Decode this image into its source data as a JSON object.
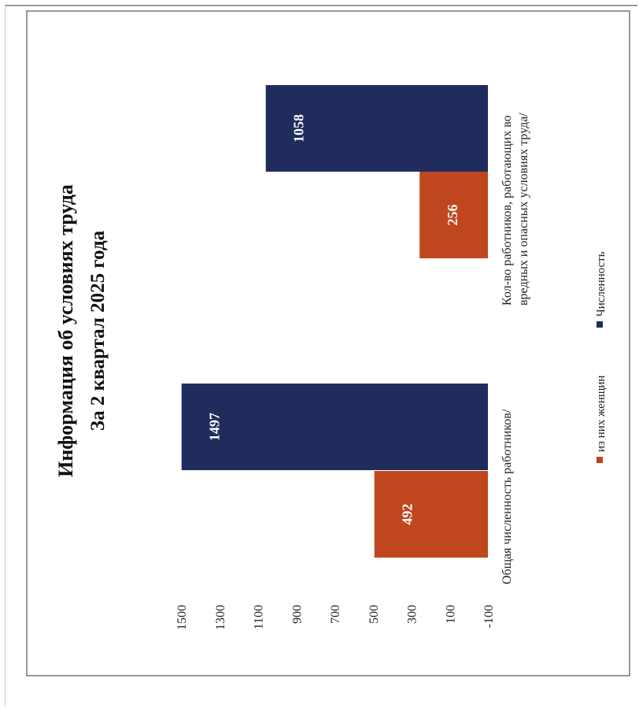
{
  "chart_data": {
    "type": "bar",
    "orientation": "rotated-90-cw",
    "title": "Информация об условиях труда",
    "subtitle": "За 2 квартал 2025 года",
    "categories": [
      {
        "line1": "Общая численность работников/",
        "line2": ""
      },
      {
        "line1": "Кол-во работников, работающих во",
        "line2": "вредных и опасных условиях труда/"
      }
    ],
    "series": [
      {
        "name": "из них женщин",
        "color": "#c0461e",
        "values": [
          492,
          256
        ]
      },
      {
        "name": "Численность",
        "color": "#1f2c5c",
        "values": [
          1497,
          1058
        ]
      }
    ],
    "ylim": [
      -100,
      1500
    ],
    "y_ticks": [
      -100,
      100,
      300,
      500,
      700,
      900,
      1100,
      1300,
      1500
    ],
    "grid": false,
    "legend_position": "bottom"
  }
}
